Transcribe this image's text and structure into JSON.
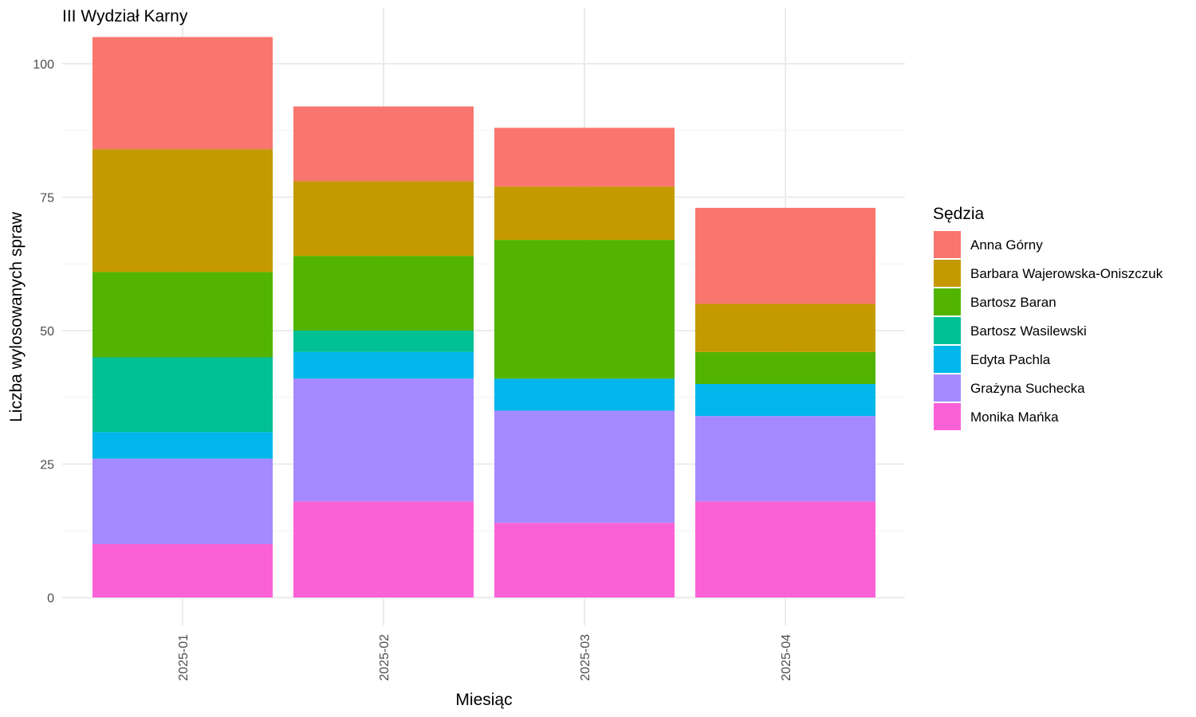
{
  "chart_data": {
    "type": "bar",
    "stacked": true,
    "title": "III Wydział Karny",
    "xlabel": "Miesiąc",
    "ylabel": "Liczba wylosowanych spraw",
    "categories": [
      "2025-01",
      "2025-02",
      "2025-03",
      "2025-04"
    ],
    "ylim": [
      0,
      105
    ],
    "yticks": [
      0,
      25,
      50,
      75,
      100
    ],
    "grid": true,
    "legend": {
      "title": "Sędzia",
      "position": "right"
    },
    "series": [
      {
        "name": "Anna Górny",
        "color": "#F8766D",
        "values": [
          21,
          14,
          11,
          18
        ]
      },
      {
        "name": "Barbara Wajerowska-Oniszczuk",
        "color": "#C49A00",
        "values": [
          23,
          14,
          10,
          9
        ]
      },
      {
        "name": "Bartosz Baran",
        "color": "#53B400",
        "values": [
          16,
          14,
          26,
          6
        ]
      },
      {
        "name": "Bartosz Wasilewski",
        "color": "#00C094",
        "values": [
          14,
          4,
          0,
          0
        ]
      },
      {
        "name": "Edyta Pachla",
        "color": "#00B6EB",
        "values": [
          5,
          5,
          6,
          6
        ]
      },
      {
        "name": "Grażyna Suchecka",
        "color": "#A58AFF",
        "values": [
          16,
          23,
          21,
          16
        ]
      },
      {
        "name": "Monika Mańka",
        "color": "#FB61D7",
        "values": [
          10,
          18,
          14,
          18
        ]
      }
    ]
  }
}
